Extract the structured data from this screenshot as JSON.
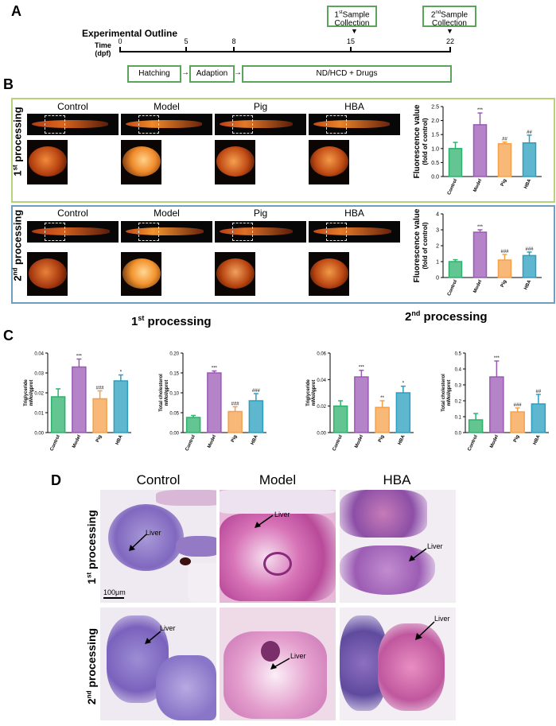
{
  "panels": {
    "a": "A",
    "b": "B",
    "c": "C",
    "d": "D"
  },
  "outline": {
    "title": "Experimental Outline",
    "time_label_1": "Time",
    "time_label_2": "(dpf)",
    "ticks": [
      "0",
      "5",
      "8",
      "15",
      "22"
    ],
    "sample1": {
      "sup": "st",
      "pre": "1",
      "rest": "Sample",
      "line2": "Collection"
    },
    "sample2": {
      "sup": "nd",
      "pre": "2",
      "rest": "Sample",
      "line2": "Collection"
    },
    "stages": [
      "Hatching",
      "Adaption",
      "ND/HCD + Drugs"
    ]
  },
  "groups4": [
    "Control",
    "Model",
    "Pig",
    "HBA"
  ],
  "groups3": [
    "Control",
    "Model",
    "HBA"
  ],
  "row1": {
    "pre": "1",
    "sup": "st",
    "post": " processing"
  },
  "row2": {
    "pre": "2",
    "sup": "nd",
    "post": " processing"
  },
  "liver": "Liver",
  "scale_bar": "100μm",
  "colors": {
    "Control": "#2db26e",
    "Model": "#9b59b6",
    "Pig": "#f5a049",
    "HBA": "#2a9fbf"
  },
  "chart_data": [
    {
      "type": "bar",
      "id": "b1",
      "ylabel": "Fluorescence value",
      "ylabel2": "(fold of control)",
      "categories": [
        "Control",
        "Model",
        "Pig",
        "HBA"
      ],
      "values": [
        1.0,
        1.85,
        1.17,
        1.2
      ],
      "errors": [
        0.22,
        0.42,
        0.06,
        0.28
      ],
      "ylim": [
        0,
        2.5
      ],
      "yticks": [
        "0.0",
        "0.5",
        "1.0",
        "1.5",
        "2.0",
        "2.5"
      ],
      "annotations": [
        "",
        "***",
        "##",
        "##"
      ]
    },
    {
      "type": "bar",
      "id": "b2",
      "ylabel": "Fluorescence value",
      "ylabel2": "(fold of control)",
      "categories": [
        "Control",
        "Model",
        "Pig",
        "HBA"
      ],
      "values": [
        1.0,
        2.85,
        1.1,
        1.38
      ],
      "errors": [
        0.12,
        0.15,
        0.35,
        0.22
      ],
      "ylim": [
        0,
        4
      ],
      "yticks": [
        "0",
        "1",
        "2",
        "3",
        "4"
      ],
      "annotations": [
        "",
        "***",
        "###",
        "###"
      ]
    },
    {
      "type": "bar",
      "id": "c1",
      "ylabel": "Triglyceride",
      "ylabel2": "mMol/gprot",
      "categories": [
        "Control",
        "Model",
        "Pig",
        "HBA"
      ],
      "values": [
        0.018,
        0.033,
        0.017,
        0.026
      ],
      "errors": [
        0.004,
        0.004,
        0.004,
        0.003
      ],
      "ylim": [
        0,
        0.04
      ],
      "yticks": [
        "0.00",
        "0.01",
        "0.02",
        "0.03",
        "0.04"
      ],
      "annotations": [
        "",
        "***",
        "###",
        "*"
      ]
    },
    {
      "type": "bar",
      "id": "c2",
      "ylabel": "Total cholesterol",
      "ylabel2": "mMol/gprot",
      "categories": [
        "Control",
        "Model",
        "Pig",
        "HBA"
      ],
      "values": [
        0.038,
        0.15,
        0.053,
        0.08
      ],
      "errors": [
        0.005,
        0.005,
        0.012,
        0.018
      ],
      "ylim": [
        0,
        0.2
      ],
      "yticks": [
        "0.00",
        "0.05",
        "0.10",
        "0.15",
        "0.20"
      ],
      "annotations": [
        "",
        "***",
        "###",
        "###"
      ]
    },
    {
      "type": "bar",
      "id": "c3",
      "ylabel": "Triglyceride",
      "ylabel2": "mMol/gprot",
      "categories": [
        "Control",
        "Model",
        "Pig",
        "HBA"
      ],
      "values": [
        0.02,
        0.042,
        0.019,
        0.03
      ],
      "errors": [
        0.004,
        0.005,
        0.005,
        0.005
      ],
      "ylim": [
        0,
        0.06
      ],
      "yticks": [
        "0.00",
        "0.02",
        "0.04",
        "0.06"
      ],
      "annotations": [
        "",
        "***",
        "**",
        "*"
      ]
    },
    {
      "type": "bar",
      "id": "c4",
      "ylabel": "Total cholesterol",
      "ylabel2": "mMol/gprot",
      "categories": [
        "Control",
        "Model",
        "Pig",
        "HBA"
      ],
      "values": [
        0.08,
        0.35,
        0.13,
        0.18
      ],
      "errors": [
        0.04,
        0.1,
        0.025,
        0.06
      ],
      "ylim": [
        0,
        0.5
      ],
      "yticks": [
        "0.0",
        "0.1",
        "0.2",
        "0.3",
        "0.4",
        "0.5"
      ],
      "annotations": [
        "",
        "***",
        "###",
        "##"
      ]
    }
  ]
}
